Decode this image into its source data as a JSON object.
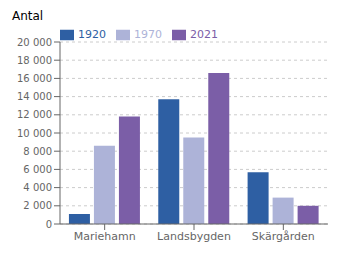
{
  "chart_data": {
    "type": "bar",
    "ylabel": "Antal",
    "categories": [
      "Mariehamn",
      "Landsbygden",
      "Skärgården"
    ],
    "series": [
      {
        "name": "1920",
        "color": "#2E5FA3",
        "values": [
          1100,
          13700,
          5700
        ]
      },
      {
        "name": "1970",
        "color": "#ADB3D8",
        "values": [
          8600,
          9500,
          2900
        ]
      },
      {
        "name": "2021",
        "color": "#7B5EA7",
        "values": [
          11800,
          16600,
          2000
        ]
      }
    ],
    "ylim": [
      0,
      20000
    ],
    "yticks": [
      0,
      {
        "value": 2000,
        "label": "2 000"
      },
      {
        "value": 4000,
        "label": "4 000"
      },
      {
        "value": 6000,
        "label": "6 000"
      },
      {
        "value": 8000,
        "label": "8 000"
      },
      {
        "value": 10000,
        "label": "10 000"
      },
      {
        "value": 12000,
        "label": "12 000"
      },
      {
        "value": 14000,
        "label": "14 000"
      },
      {
        "value": 16000,
        "label": "16 000"
      },
      {
        "value": 18000,
        "label": "18 000"
      },
      {
        "value": 20000,
        "label": "20 000"
      }
    ],
    "grid": true,
    "legend": "upper left"
  }
}
